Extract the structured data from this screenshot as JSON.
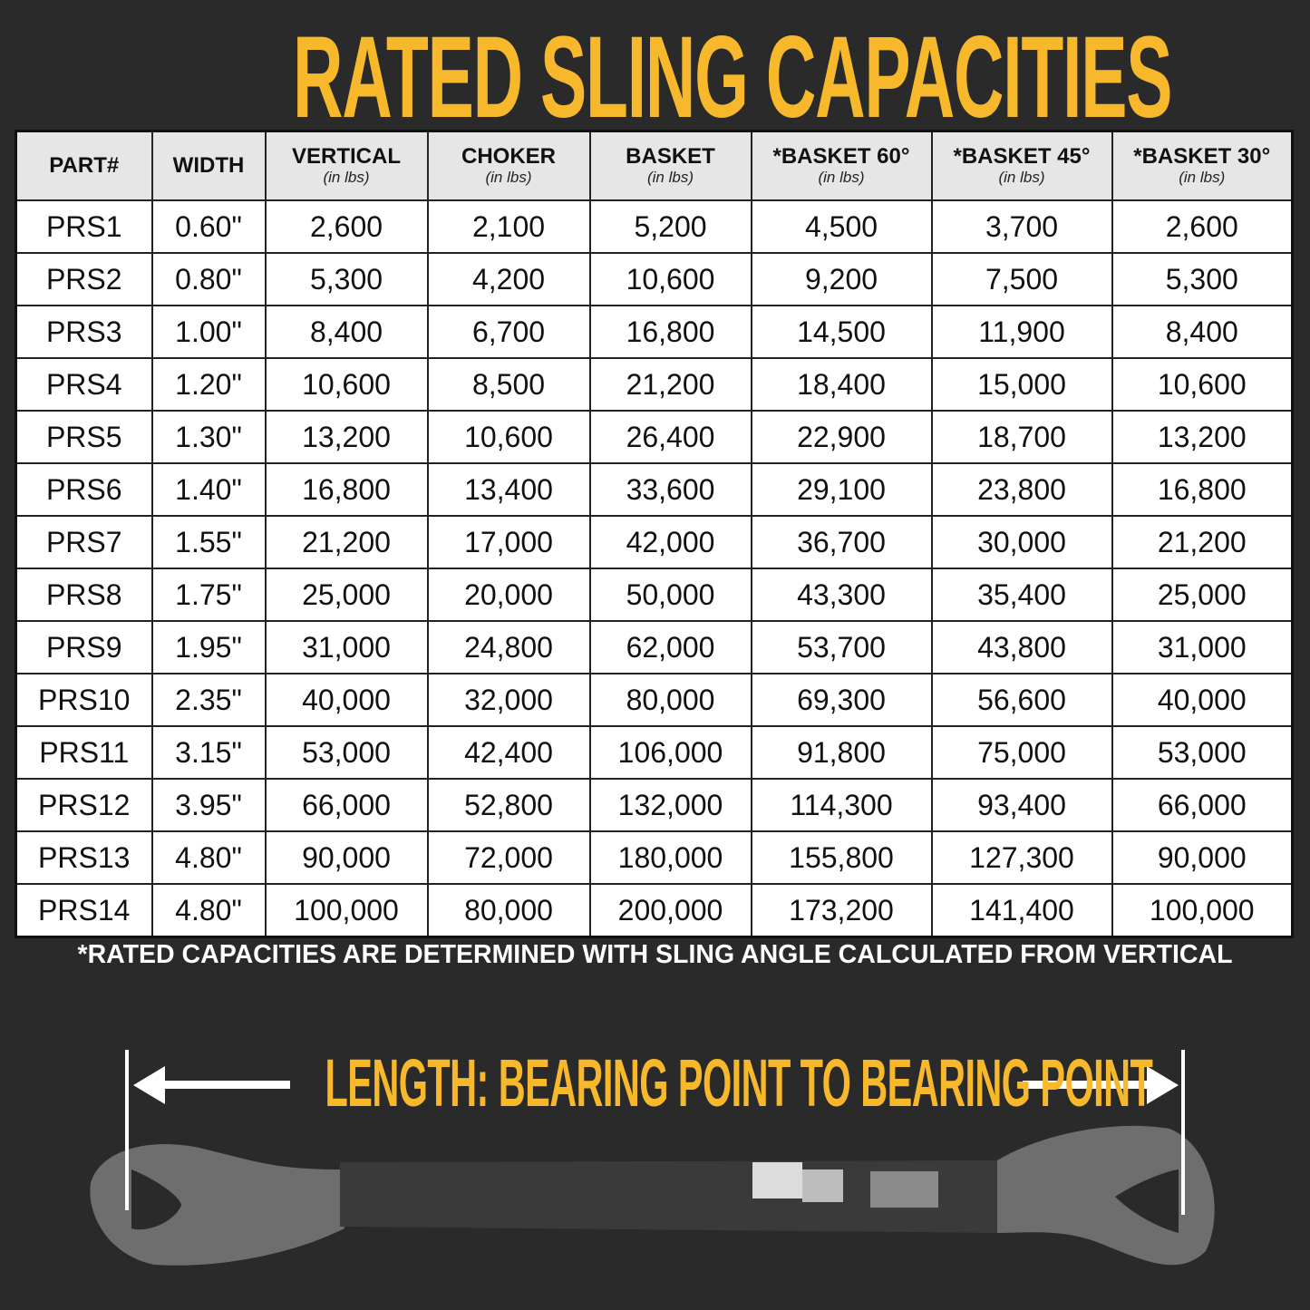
{
  "title": "RATED SLING CAPACITIES",
  "table": {
    "headers": [
      {
        "label": "PART#",
        "sub": ""
      },
      {
        "label": "WIDTH",
        "sub": ""
      },
      {
        "label": "VERTICAL",
        "sub": "(in lbs)"
      },
      {
        "label": "CHOKER",
        "sub": "(in lbs)"
      },
      {
        "label": "BASKET",
        "sub": "(in lbs)"
      },
      {
        "label": "*BASKET 60°",
        "sub": "(in lbs)"
      },
      {
        "label": "*BASKET 45°",
        "sub": "(in lbs)"
      },
      {
        "label": "*BASKET 30°",
        "sub": "(in lbs)"
      }
    ],
    "rows": [
      [
        "PRS1",
        "0.60\"",
        "2,600",
        "2,100",
        "5,200",
        "4,500",
        "3,700",
        "2,600"
      ],
      [
        "PRS2",
        "0.80\"",
        "5,300",
        "4,200",
        "10,600",
        "9,200",
        "7,500",
        "5,300"
      ],
      [
        "PRS3",
        "1.00\"",
        "8,400",
        "6,700",
        "16,800",
        "14,500",
        "11,900",
        "8,400"
      ],
      [
        "PRS4",
        "1.20\"",
        "10,600",
        "8,500",
        "21,200",
        "18,400",
        "15,000",
        "10,600"
      ],
      [
        "PRS5",
        "1.30\"",
        "13,200",
        "10,600",
        "26,400",
        "22,900",
        "18,700",
        "13,200"
      ],
      [
        "PRS6",
        "1.40\"",
        "16,800",
        "13,400",
        "33,600",
        "29,100",
        "23,800",
        "16,800"
      ],
      [
        "PRS7",
        "1.55\"",
        "21,200",
        "17,000",
        "42,000",
        "36,700",
        "30,000",
        "21,200"
      ],
      [
        "PRS8",
        "1.75\"",
        "25,000",
        "20,000",
        "50,000",
        "43,300",
        "35,400",
        "25,000"
      ],
      [
        "PRS9",
        "1.95\"",
        "31,000",
        "24,800",
        "62,000",
        "53,700",
        "43,800",
        "31,000"
      ],
      [
        "PRS10",
        "2.35\"",
        "40,000",
        "32,000",
        "80,000",
        "69,300",
        "56,600",
        "40,000"
      ],
      [
        "PRS11",
        "3.15\"",
        "53,000",
        "42,400",
        "106,000",
        "91,800",
        "75,000",
        "53,000"
      ],
      [
        "PRS12",
        "3.95\"",
        "66,000",
        "52,800",
        "132,000",
        "114,300",
        "93,400",
        "66,000"
      ],
      [
        "PRS13",
        "4.80\"",
        "90,000",
        "72,000",
        "180,000",
        "155,800",
        "127,300",
        "90,000"
      ],
      [
        "PRS14",
        "4.80\"",
        "100,000",
        "80,000",
        "200,000",
        "173,200",
        "141,400",
        "100,000"
      ]
    ]
  },
  "footnote": "*RATED CAPACITIES ARE DETERMINED WITH SLING ANGLE CALCULATED FROM VERTICAL",
  "length_label": "LENGTH: BEARING POINT TO BEARING POINT",
  "colors": {
    "accent": "#f7b92b",
    "background": "#2a2a2a",
    "header_bg": "#e6e6e6"
  }
}
